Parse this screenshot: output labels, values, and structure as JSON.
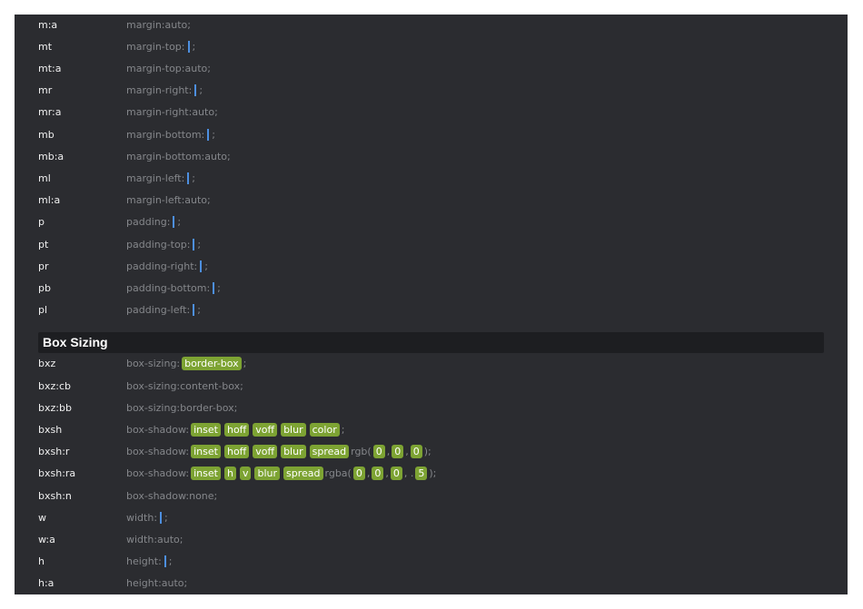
{
  "sections": [
    {
      "rows": [
        {
          "abbr": "m:a",
          "code": [
            "margin:auto;"
          ]
        },
        {
          "abbr": "mt",
          "code": [
            "margin-top:",
            ";"
          ]
        },
        {
          "abbr": "mt:a",
          "code": [
            "margin-top:auto;"
          ]
        },
        {
          "abbr": "mr",
          "code": [
            "margin-right:",
            ";"
          ]
        },
        {
          "abbr": "mr:a",
          "code": [
            "margin-right:auto;"
          ]
        },
        {
          "abbr": "mb",
          "code": [
            "margin-bottom:",
            ";"
          ]
        },
        {
          "abbr": "mb:a",
          "code": [
            "margin-bottom:auto;"
          ]
        },
        {
          "abbr": "ml",
          "code": [
            "margin-left:",
            ";"
          ]
        },
        {
          "abbr": "ml:a",
          "code": [
            "margin-left:auto;"
          ]
        },
        {
          "abbr": "p",
          "code": [
            "padding:",
            ";"
          ]
        },
        {
          "abbr": "pt",
          "code": [
            "padding-top:",
            ";"
          ]
        },
        {
          "abbr": "pr",
          "code": [
            "padding-right:",
            ";"
          ]
        },
        {
          "abbr": "pb",
          "code": [
            "padding-bottom:",
            ";"
          ]
        },
        {
          "abbr": "pl",
          "code": [
            "padding-left:",
            ";"
          ]
        }
      ]
    },
    {
      "title": "Box Sizing",
      "rows": [
        {
          "abbr": "bxz",
          "code": [
            "box-sizing:",
            [
              "border-box"
            ],
            ";"
          ]
        },
        {
          "abbr": "bxz:cb",
          "code": [
            "box-sizing:content-box;"
          ]
        },
        {
          "abbr": "bxz:bb",
          "code": [
            "box-sizing:border-box;"
          ]
        },
        {
          "abbr": "bxsh",
          "code": [
            "box-shadow:",
            [
              "inset",
              "hoff",
              "voff",
              "blur",
              "color"
            ],
            ";"
          ]
        },
        {
          "abbr": "bxsh:r",
          "code": [
            "box-shadow:",
            [
              "inset",
              "hoff",
              "voff",
              "blur",
              "spread"
            ],
            "rgb(",
            [
              "0"
            ],
            ",",
            [
              "0"
            ],
            ",",
            [
              "0"
            ],
            ");"
          ]
        },
        {
          "abbr": "bxsh:ra",
          "code": [
            "box-shadow:",
            [
              "inset",
              "h",
              "v",
              "blur",
              "spread"
            ],
            "rgba(",
            [
              "0"
            ],
            ",",
            [
              "0"
            ],
            ",",
            [
              "0"
            ],
            ", .",
            [
              "5"
            ],
            ");"
          ]
        },
        {
          "abbr": "bxsh:n",
          "code": [
            "box-shadow:none;"
          ]
        },
        {
          "abbr": "w",
          "code": [
            "width:",
            ";"
          ]
        },
        {
          "abbr": "w:a",
          "code": [
            "width:auto;"
          ]
        },
        {
          "abbr": "h",
          "code": [
            "height:",
            ";"
          ]
        },
        {
          "abbr": "h:a",
          "code": [
            "height:auto;"
          ]
        }
      ]
    }
  ]
}
